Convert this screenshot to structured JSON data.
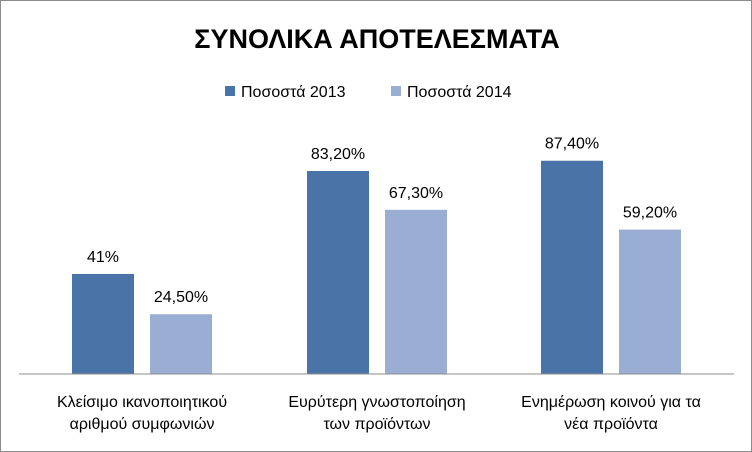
{
  "chart_data": {
    "type": "bar",
    "title": "ΣΥΝΟΛΙΚΑ ΑΠΟΤΕΛΕΣΜΑΤΑ",
    "categories": [
      [
        "Κλείσιμο ικανοποιητικού",
        "αριθμού συμφωνιών"
      ],
      [
        "Ευρύτερη γνωστοποίηση",
        "των προϊόντων"
      ],
      [
        "Ενημέρωση κοινού για τα",
        "νέα προϊόντα"
      ]
    ],
    "series": [
      {
        "name": "Ποσοστά 2013",
        "color": "#4a73a8",
        "values": [
          41,
          83.2,
          87.4
        ],
        "labels": [
          "41%",
          "83,20%",
          "87,40%"
        ]
      },
      {
        "name": "Ποσοστά 2014",
        "color": "#9aaed4",
        "values": [
          24.5,
          67.3,
          59.2
        ],
        "labels": [
          "24,50%",
          "67,30%",
          "59,20%"
        ]
      }
    ],
    "ylim": [
      0,
      100
    ],
    "grid": false,
    "legend_position": "top"
  }
}
